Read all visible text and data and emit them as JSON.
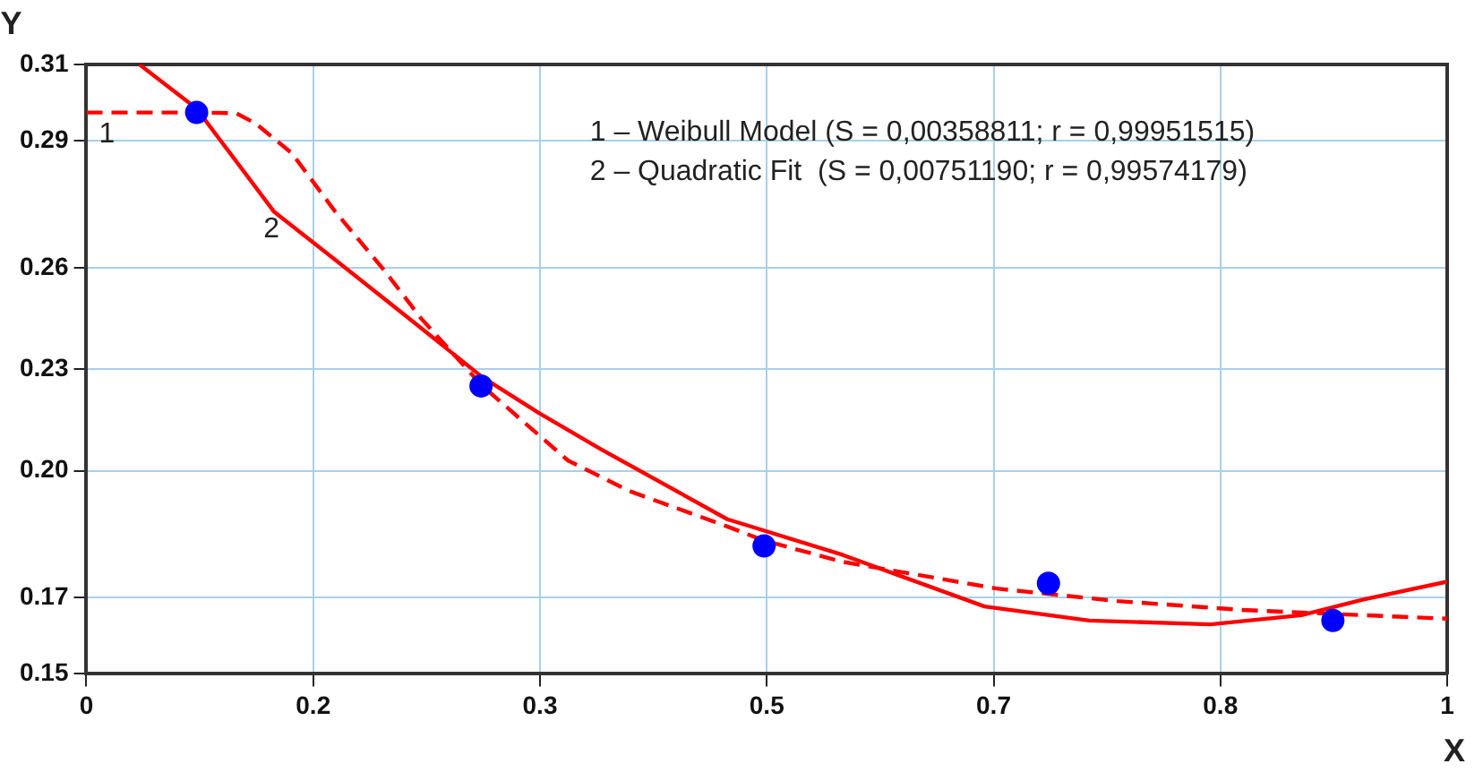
{
  "chart_data": {
    "type": "scatter",
    "xlabel": "X",
    "ylabel": "Y",
    "xlim": [
      0,
      1
    ],
    "xticks": [
      0,
      {
        "value": 0.16667,
        "label": "0.2"
      },
      {
        "value": 0.33333,
        "label": "0.3"
      },
      0.5,
      {
        "value": 0.66667,
        "label": "0.7"
      },
      {
        "value": 0.83333,
        "label": "0.8"
      },
      1
    ],
    "ylim": [
      0.15,
      0.31
    ],
    "yticks": [
      0.15,
      0.17,
      {
        "value": 0.20333,
        "label": "0.20"
      },
      0.23,
      {
        "value": 0.25667,
        "label": "0.26"
      },
      0.29,
      0.31
    ],
    "grid": true,
    "legend": false,
    "marker": "circle",
    "series": [
      {
        "color": "#0000ff",
        "x": [
          0.081,
          0.29,
          0.498,
          0.707,
          0.916
        ],
        "values": [
          0.2974,
          0.2256,
          0.1836,
          0.1738,
          0.164
        ]
      },
      {
        "type": "line",
        "color": "#ff0000",
        "line_style": "dashed",
        "marker": "none",
        "x": [
          0,
          0.081,
          0.11,
          0.124,
          0.151,
          0.183,
          0.219,
          0.246,
          0.291,
          0.354,
          0.399,
          0.471,
          0.498,
          0.556,
          0.669,
          0.758,
          0.849,
          0.939,
          1.0
        ],
        "values": [
          0.2974,
          0.2974,
          0.2972,
          0.2946,
          0.2867,
          0.2713,
          0.2559,
          0.2433,
          0.2256,
          0.206,
          0.198,
          0.1887,
          0.185,
          0.1794,
          0.1724,
          0.1691,
          0.1668,
          0.1654,
          0.1645
        ]
      },
      {
        "type": "line",
        "color": "#ff0000",
        "line_style": "solid",
        "marker": "none",
        "x": [
          0.039,
          0.081,
          0.138,
          0.183,
          0.242,
          0.291,
          0.332,
          0.377,
          0.471,
          0.556,
          0.66,
          0.737,
          0.826,
          0.893,
          0.939,
          1.0
        ],
        "values": [
          0.31,
          0.2984,
          0.2713,
          0.2587,
          0.2419,
          0.2279,
          0.2186,
          0.2092,
          0.1906,
          0.1812,
          0.1677,
          0.164,
          0.163,
          0.1654,
          0.1696,
          0.1742
        ]
      }
    ],
    "annotations": [
      "1",
      "2",
      "1 – Weibull Model (S = 0,00358811; r = 0,99951515)",
      "2 – Quadratic Fit  (S = 0,00751190; r = 0,99574179)"
    ]
  }
}
